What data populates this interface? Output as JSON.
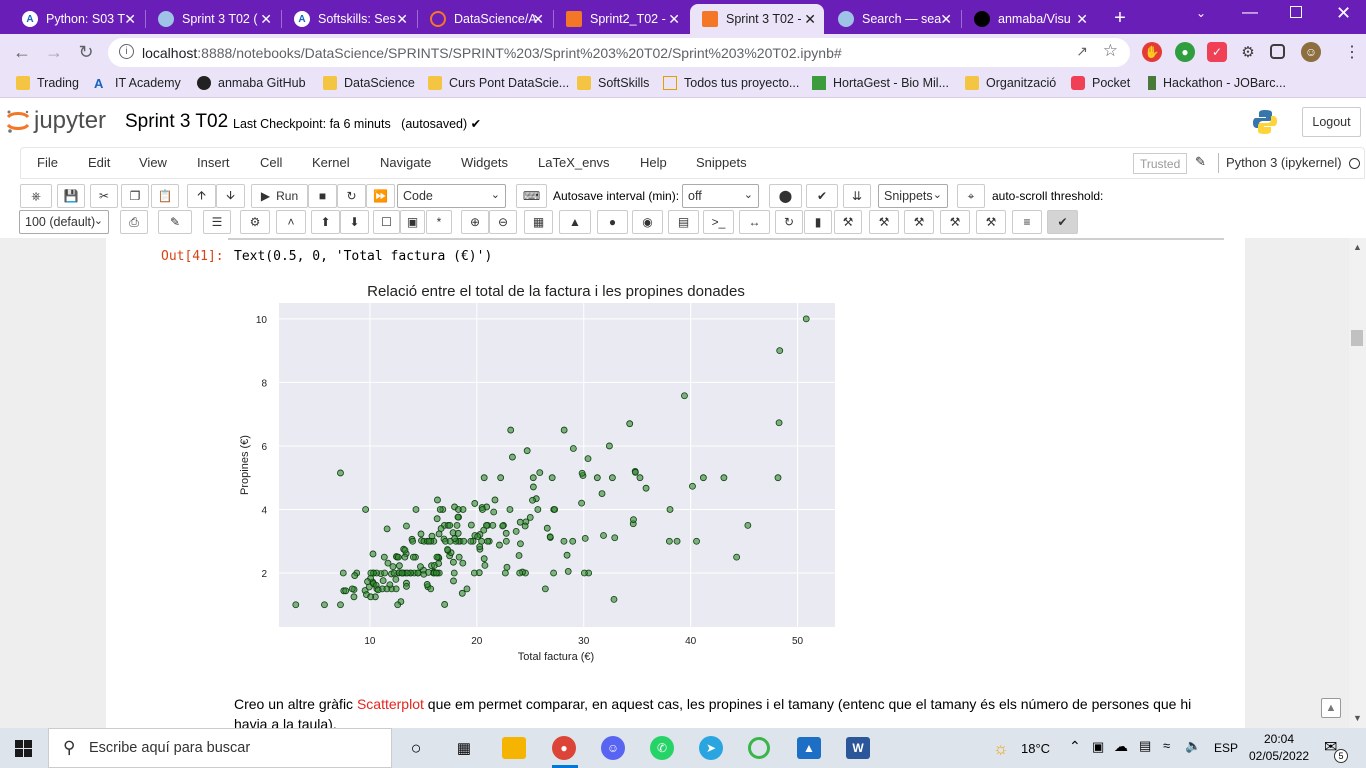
{
  "browser": {
    "tabs": [
      {
        "label": "Python: S03 T",
        "icon": "A",
        "color": "#1565c0",
        "active": false
      },
      {
        "label": "Sprint 3 T02 (",
        "icon": "globe",
        "color": "#5f6368",
        "active": false
      },
      {
        "label": "Softskills: Ses",
        "icon": "A",
        "color": "#1565c0",
        "active": false
      },
      {
        "label": "DataScience/A",
        "icon": "jupyter",
        "color": "#f37726",
        "active": false
      },
      {
        "label": "Sprint2_T02 -",
        "icon": "book",
        "color": "#f37726",
        "active": false
      },
      {
        "label": "Sprint 3 T02 -",
        "icon": "book",
        "color": "#f37726",
        "active": true
      },
      {
        "label": "Search — sea",
        "icon": "globe",
        "color": "#5f6368",
        "active": false
      },
      {
        "label": "anmaba/Visu",
        "icon": "github",
        "color": "#000000",
        "active": false
      }
    ],
    "new_tab_label": "+",
    "url_host": "localhost",
    "url_rest": ":8888/notebooks/DataScience/SPRINTS/SPRINT%203/Sprint%203%20T02/Sprint%203%20T02.ipynb#",
    "bookmarks": [
      {
        "label": "Trading",
        "icon": "folder"
      },
      {
        "label": "IT Academy",
        "icon": "A"
      },
      {
        "label": "anmaba GitHub",
        "icon": "github"
      },
      {
        "label": "DataScience",
        "icon": "folder"
      },
      {
        "label": "Curs Pont DataScie...",
        "icon": "folder"
      },
      {
        "label": "SoftSkills",
        "icon": "folder"
      },
      {
        "label": "Todos tus proyecto...",
        "icon": "house"
      },
      {
        "label": "HortaGest - Bio Mil...",
        "icon": "leaf"
      },
      {
        "label": "Organització",
        "icon": "folder"
      },
      {
        "label": "Pocket",
        "icon": "pocket"
      },
      {
        "label": "Hackathon - JOBarc...",
        "icon": "flag"
      }
    ]
  },
  "jupyter": {
    "logo_text": "jupyter",
    "notebook_title": "Sprint 3 T02",
    "checkpoint": "Last Checkpoint: fa 6 minuts",
    "autosave": "(autosaved)",
    "logout_label": "Logout",
    "menus": [
      "File",
      "Edit",
      "View",
      "Insert",
      "Cell",
      "Kernel",
      "Navigate",
      "Widgets",
      "LaTeX_envs",
      "Help",
      "Snippets"
    ],
    "trusted_label": "Trusted",
    "kernel_label": "Python 3 (ipykernel)",
    "toolbar": {
      "run_label": "Run",
      "cell_type": "Code",
      "autosave_label": "Autosave interval (min):",
      "autosave_value": "off",
      "snippets_label": "Snippets",
      "autoscroll_label": "auto-scroll threshold:",
      "autoscroll_value": "100 (default)"
    }
  },
  "output": {
    "prompt": "Out[41]:",
    "text": "Text(0.5, 0, 'Total factura (€)')"
  },
  "chart_data": {
    "type": "scatter",
    "title": "Relació entre el total de la factura i les propines donades",
    "xlabel": "Total factura (€)",
    "ylabel": "Propines (€)",
    "xlim": [
      1.5,
      53.5
    ],
    "ylim": [
      0.3,
      10.5
    ],
    "xticks": [
      10,
      20,
      30,
      40,
      50
    ],
    "yticks": [
      2,
      4,
      6,
      8,
      10
    ],
    "grid": true,
    "marker_color": "#2e8b2e",
    "background": "#eaeaf2",
    "x": [
      16.99,
      10.34,
      21.01,
      23.68,
      24.59,
      25.29,
      8.77,
      26.88,
      15.04,
      14.78,
      10.27,
      35.26,
      15.42,
      18.43,
      14.83,
      21.58,
      10.33,
      16.29,
      16.97,
      20.65,
      17.92,
      20.29,
      15.77,
      39.42,
      19.82,
      17.81,
      13.37,
      12.69,
      21.7,
      19.65,
      9.55,
      18.35,
      15.06,
      20.69,
      17.78,
      24.06,
      16.31,
      16.93,
      18.69,
      31.27,
      16.04,
      17.46,
      13.94,
      9.68,
      30.4,
      18.29,
      22.23,
      32.4,
      28.55,
      18.04,
      12.54,
      10.29,
      34.81,
      9.94,
      25.56,
      19.49,
      38.01,
      26.41,
      11.24,
      48.27,
      20.29,
      13.81,
      11.02,
      18.29,
      17.59,
      20.08,
      16.45,
      3.07,
      20.23,
      15.01,
      12.02,
      17.07,
      26.86,
      25.28,
      14.73,
      10.51,
      17.92,
      27.2,
      22.76,
      17.29,
      19.44,
      16.66,
      10.07,
      32.68,
      15.98,
      34.83,
      13.03,
      18.28,
      24.71,
      21.16,
      28.97,
      22.49,
      5.75,
      16.32,
      22.75,
      40.17,
      27.28,
      12.03,
      21.01,
      12.46,
      11.35,
      15.38,
      44.3,
      22.42,
      20.92,
      15.36,
      20.49,
      25.21,
      18.24,
      14.31,
      14.0,
      7.25,
      38.07,
      23.95,
      25.71,
      17.31,
      29.93,
      10.65,
      12.43,
      24.08,
      11.69,
      13.42,
      14.26,
      15.95,
      12.48,
      29.8,
      8.52,
      14.52,
      11.38,
      22.82,
      19.08,
      20.27,
      11.17,
      12.26,
      18.26,
      8.51,
      10.33,
      14.15,
      16.0,
      13.16,
      17.47,
      34.3,
      41.19,
      27.05,
      16.43,
      8.35,
      18.64,
      11.87,
      9.78,
      7.51,
      14.07,
      13.13,
      17.26,
      24.55,
      19.77,
      29.85,
      48.17,
      25.0,
      13.39,
      16.49,
      21.5,
      12.66,
      16.21,
      13.81,
      17.51,
      24.52,
      20.76,
      31.71,
      10.59,
      10.63,
      50.81,
      15.81,
      7.25,
      31.85,
      16.82,
      32.9,
      17.89,
      14.48,
      9.6,
      34.63,
      34.65,
      23.33,
      45.35,
      23.17,
      40.55,
      20.69,
      20.9,
      30.46,
      18.15,
      23.1,
      15.69,
      19.81,
      28.44,
      15.48,
      16.58,
      7.56,
      10.34,
      43.11,
      13.0,
      13.51,
      18.71,
      12.74,
      13.0,
      16.4,
      20.53,
      16.47,
      26.59,
      38.73,
      24.27,
      12.76,
      30.06,
      25.89,
      48.33,
      13.27,
      28.17,
      12.9,
      28.15,
      11.59,
      7.74,
      30.14,
      12.16,
      13.42,
      8.58,
      15.98,
      13.42,
      16.27,
      10.09,
      20.45,
      13.28,
      22.12,
      24.01,
      15.69,
      11.61,
      10.77,
      15.53,
      10.07,
      12.6,
      32.83,
      35.83,
      29.03,
      27.18,
      22.67,
      17.82,
      18.78
    ],
    "y": [
      1.01,
      1.66,
      3.5,
      3.31,
      3.61,
      4.71,
      2.0,
      3.12,
      1.96,
      3.23,
      1.71,
      5.0,
      1.57,
      3.0,
      3.02,
      3.92,
      1.67,
      3.71,
      3.5,
      3.35,
      4.08,
      2.75,
      2.23,
      7.58,
      3.18,
      2.34,
      2.0,
      2.0,
      4.3,
      3.0,
      1.45,
      2.5,
      3.0,
      2.45,
      3.27,
      3.6,
      2.0,
      3.07,
      2.31,
      5.0,
      2.24,
      2.54,
      3.06,
      1.32,
      5.6,
      3.0,
      5.0,
      6.0,
      2.05,
      3.0,
      2.5,
      2.6,
      5.2,
      1.56,
      4.34,
      3.51,
      3.0,
      1.5,
      1.76,
      6.73,
      3.21,
      2.0,
      1.98,
      3.76,
      2.64,
      3.15,
      2.47,
      1.0,
      2.01,
      2.09,
      1.97,
      3.0,
      3.14,
      5.0,
      2.2,
      1.25,
      3.08,
      4.0,
      3.0,
      2.71,
      3.0,
      3.4,
      1.83,
      5.0,
      2.03,
      5.17,
      2.0,
      4.0,
      5.85,
      3.0,
      3.0,
      3.5,
      1.0,
      4.3,
      3.25,
      4.73,
      4.0,
      1.5,
      3.0,
      1.5,
      2.5,
      3.0,
      2.5,
      3.48,
      4.08,
      1.64,
      4.06,
      4.29,
      3.76,
      4.0,
      3.0,
      1.0,
      4.0,
      2.55,
      4.0,
      3.5,
      5.07,
      1.5,
      1.8,
      2.92,
      2.31,
      1.68,
      2.5,
      2.0,
      2.52,
      4.2,
      1.48,
      2.0,
      2.0,
      2.18,
      1.5,
      2.83,
      1.5,
      2.0,
      3.25,
      1.25,
      2.0,
      2.0,
      2.0,
      2.75,
      3.5,
      6.7,
      5.0,
      5.0,
      2.3,
      1.5,
      1.36,
      1.63,
      1.73,
      2.0,
      2.5,
      2.0,
      2.74,
      2.0,
      2.0,
      5.14,
      5.0,
      3.75,
      2.61,
      2.0,
      3.5,
      2.5,
      2.0,
      2.0,
      3.0,
      3.48,
      2.24,
      4.5,
      1.61,
      2.0,
      10.0,
      3.16,
      5.15,
      3.18,
      4.0,
      3.11,
      2.0,
      2.0,
      4.0,
      3.55,
      3.68,
      5.65,
      3.5,
      6.5,
      3.0,
      5.0,
      3.5,
      2.0,
      3.5,
      4.0,
      1.5,
      4.19,
      2.56,
      2.02,
      4.0,
      1.44,
      2.0,
      5.0,
      2.0,
      2.0,
      4.0,
      2.01,
      2.0,
      2.5,
      4.0,
      3.23,
      3.41,
      3.0,
      2.03,
      2.23,
      2.0,
      5.16,
      9.0,
      2.5,
      6.5,
      1.1,
      3.0,
      1.5,
      1.44,
      3.09,
      2.2,
      3.48,
      1.92,
      3.0,
      1.58,
      2.5,
      2.0,
      3.0,
      2.72,
      2.88,
      2.0,
      3.0,
      3.39,
      1.47,
      3.0,
      1.25,
      1.0,
      1.17,
      4.67,
      5.92,
      2.0,
      2.0,
      1.75,
      3.0
    ]
  },
  "markdown": {
    "before": "Creo un altre gràfic ",
    "highlight": "Scatterplot",
    "after": " que em permet comparar, en aquest cas, les propines i el tamany (entenc que el tamany és els número de persones que hi havia a la taula)."
  },
  "taskbar": {
    "search_placeholder": "Escribe aquí para buscar",
    "temperature": "18°C",
    "language": "ESP",
    "time": "20:04",
    "date": "02/05/2022",
    "notifications": "5"
  }
}
